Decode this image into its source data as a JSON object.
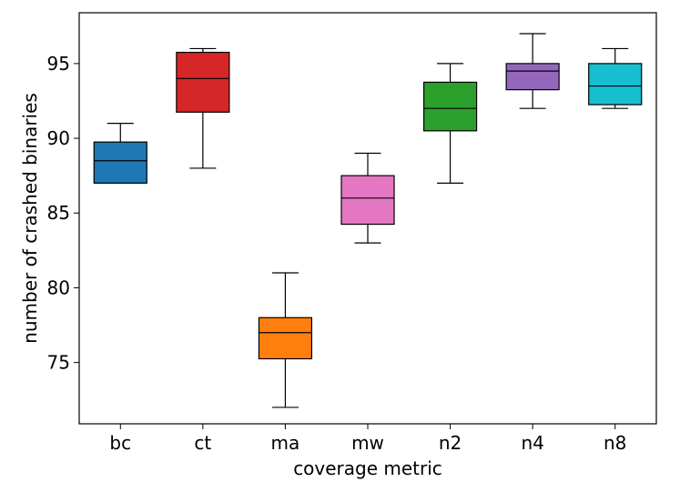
{
  "chart_data": {
    "type": "box",
    "title": "",
    "xlabel": "coverage metric",
    "ylabel": "number of crashed binaries",
    "categories": [
      "bc",
      "ct",
      "ma",
      "mw",
      "n2",
      "n4",
      "n8"
    ],
    "ylim": [
      70.9,
      98.4
    ],
    "yticks": [
      75,
      80,
      85,
      90,
      95
    ],
    "ytick_labels": [
      "75",
      "80",
      "85",
      "90",
      "95"
    ],
    "grid": false,
    "legend": "none",
    "boxes": [
      {
        "category": "bc",
        "whisker_low": 87,
        "q1": 87,
        "median": 88.5,
        "q3": 89.75,
        "whisker_high": 91,
        "color": "#1f77b4"
      },
      {
        "category": "ct",
        "whisker_low": 88,
        "q1": 91.75,
        "median": 94,
        "q3": 95.75,
        "whisker_high": 96,
        "color": "#d62728"
      },
      {
        "category": "ma",
        "whisker_low": 72,
        "q1": 75.25,
        "median": 77,
        "q3": 78,
        "whisker_high": 81,
        "color": "#ff7f0e"
      },
      {
        "category": "mw",
        "whisker_low": 83,
        "q1": 84.25,
        "median": 86,
        "q3": 87.5,
        "whisker_high": 89,
        "color": "#e377c2"
      },
      {
        "category": "n2",
        "whisker_low": 87,
        "q1": 90.5,
        "median": 92,
        "q3": 93.75,
        "whisker_high": 95,
        "color": "#2ca02c"
      },
      {
        "category": "n4",
        "whisker_low": 92,
        "q1": 93.25,
        "median": 94.5,
        "q3": 95,
        "whisker_high": 97,
        "color": "#9467bd"
      },
      {
        "category": "n8",
        "whisker_low": 92,
        "q1": 92.25,
        "median": 93.5,
        "q3": 95,
        "whisker_high": 96,
        "color": "#17becf"
      }
    ]
  }
}
